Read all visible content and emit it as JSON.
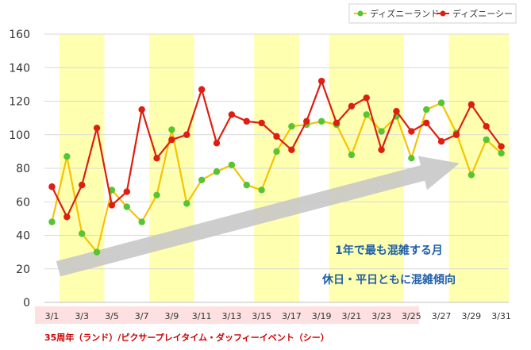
{
  "chart_data": {
    "type": "line",
    "title": "",
    "xlabel": "",
    "ylabel": "",
    "ylim": [
      0,
      160
    ],
    "y_ticks": [
      0,
      20,
      40,
      60,
      80,
      100,
      120,
      140,
      160
    ],
    "grid": "horizontal",
    "legend_position": "top-right",
    "x": [
      "3/1",
      "3/2",
      "3/3",
      "3/4",
      "3/5",
      "3/6",
      "3/7",
      "3/8",
      "3/9",
      "3/10",
      "3/11",
      "3/12",
      "3/13",
      "3/14",
      "3/15",
      "3/16",
      "3/17",
      "3/18",
      "3/19",
      "3/20",
      "3/21",
      "3/22",
      "3/23",
      "3/24",
      "3/25",
      "3/26",
      "3/27",
      "3/28",
      "3/29",
      "3/30",
      "3/31"
    ],
    "x_tick_labels": [
      "3/1",
      "3/3",
      "3/5",
      "3/7",
      "3/9",
      "3/11",
      "3/13",
      "3/15",
      "3/17",
      "3/19",
      "3/21",
      "3/23",
      "3/25",
      "3/27",
      "3/29",
      "3/31"
    ],
    "series": [
      {
        "name": "ディズニーランド",
        "line_color": "#f5c400",
        "marker_color": "#55c534",
        "values": [
          48,
          87,
          41,
          30,
          67,
          57,
          48,
          64,
          103,
          59,
          73,
          78,
          82,
          70,
          67,
          90,
          105,
          106,
          108,
          106,
          88,
          112,
          102,
          111,
          86,
          115,
          119,
          101,
          76,
          97,
          89
        ]
      },
      {
        "name": "ディズニーシー",
        "line_color": "#dd1e10",
        "marker_color": "#dd1e10",
        "values": [
          69,
          51,
          70,
          104,
          58,
          66,
          115,
          86,
          97,
          100,
          127,
          95,
          112,
          108,
          107,
          99,
          91,
          108,
          132,
          107,
          117,
          122,
          91,
          114,
          102,
          107,
          96,
          100,
          118,
          105,
          93
        ]
      }
    ],
    "highlight_ranges": [
      {
        "start": "3/2",
        "end": "3/4"
      },
      {
        "start": "3/8",
        "end": "3/10"
      },
      {
        "start": "3/15",
        "end": "3/17"
      },
      {
        "start": "3/20",
        "end": "3/21"
      },
      {
        "start": "3/22",
        "end": "3/24"
      },
      {
        "start": "3/28",
        "end": "3/31"
      }
    ],
    "event_band": {
      "start": "3/1",
      "end": "3/25",
      "color": "#fde0e0"
    },
    "annotations": [
      "1年で最も混雑する月",
      "休日・平日ともに混雑傾向"
    ],
    "footnote": "35周年（ランド）/ピクサープレイタイム・ダッフィーイベント（シー）",
    "colors": {
      "highlight": "#ffffb0",
      "arrow": "#c8c8c8",
      "grid": "#d9d9d9",
      "annotation": "#1f5fa8",
      "footnote": "#cc0000"
    }
  }
}
